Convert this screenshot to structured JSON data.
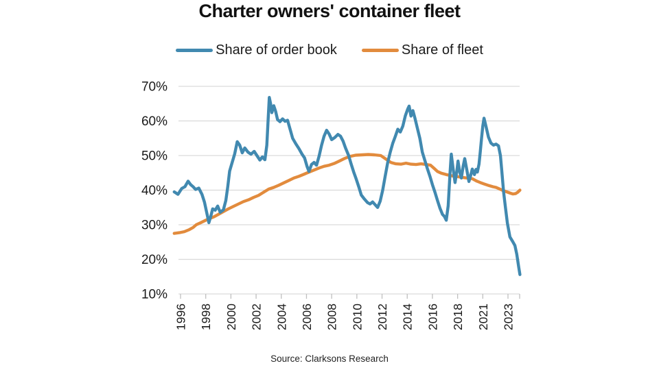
{
  "title": "Charter owners' container fleet",
  "source": "Source: Clarksons Research",
  "colors": {
    "order_book": "#4189b0",
    "fleet": "#e28b3d",
    "gridline": "#d9d9d9",
    "tick": "#bfbfbf",
    "text": "#1a1a1a"
  },
  "chart_data": {
    "type": "line",
    "title": "Charter owners' container fleet",
    "xlabel": "",
    "ylabel": "",
    "unit": "%",
    "grid": true,
    "legend_position": "top",
    "y_axis": {
      "range": [
        10,
        70
      ],
      "tick_values": [
        70,
        60,
        50,
        40,
        30,
        20,
        10
      ],
      "tick_labels": [
        "70%",
        "60%",
        "50%",
        "40%",
        "30%",
        "20%",
        "10%"
      ]
    },
    "x_axis": {
      "tick_years": [
        1996,
        1998,
        2000,
        2002,
        2004,
        2006,
        2008,
        2010,
        2012,
        2014,
        2016,
        2018,
        2021,
        2023
      ],
      "tick_labels": [
        "1996",
        "1998",
        "2000",
        "2002",
        "2004",
        "2006",
        "2008",
        "2010",
        "2012",
        "2014",
        "2016",
        "2018",
        "2021",
        "2023"
      ]
    },
    "series": [
      {
        "id": "fleet",
        "name": "Share of fleet",
        "color": "#e28b3d",
        "points": [
          [
            1995.5,
            27.5
          ],
          [
            1995.9,
            27.7
          ],
          [
            1996.3,
            28.0
          ],
          [
            1996.7,
            28.6
          ],
          [
            1997.0,
            29.2
          ],
          [
            1997.25,
            30.0
          ],
          [
            1997.6,
            30.6
          ],
          [
            1997.95,
            31.2
          ],
          [
            1998.3,
            31.8
          ],
          [
            1998.65,
            32.3
          ],
          [
            1999.0,
            33.0
          ],
          [
            1999.4,
            33.8
          ],
          [
            1999.8,
            34.6
          ],
          [
            2000.2,
            35.3
          ],
          [
            2000.6,
            36.0
          ],
          [
            2001.0,
            36.7
          ],
          [
            2001.4,
            37.2
          ],
          [
            2001.8,
            37.9
          ],
          [
            2002.2,
            38.5
          ],
          [
            2002.6,
            39.4
          ],
          [
            2003.0,
            40.3
          ],
          [
            2003.4,
            40.8
          ],
          [
            2003.8,
            41.4
          ],
          [
            2004.2,
            42.1
          ],
          [
            2004.6,
            42.8
          ],
          [
            2005.0,
            43.5
          ],
          [
            2005.4,
            44.0
          ],
          [
            2005.8,
            44.6
          ],
          [
            2006.2,
            45.2
          ],
          [
            2006.6,
            45.8
          ],
          [
            2007.0,
            46.4
          ],
          [
            2007.4,
            46.9
          ],
          [
            2007.8,
            47.2
          ],
          [
            2008.2,
            47.7
          ],
          [
            2008.6,
            48.4
          ],
          [
            2009.0,
            49.1
          ],
          [
            2009.4,
            49.7
          ],
          [
            2009.9,
            50.1
          ],
          [
            2010.4,
            50.2
          ],
          [
            2010.9,
            50.3
          ],
          [
            2011.4,
            50.2
          ],
          [
            2011.9,
            50.0
          ],
          [
            2012.3,
            49.0
          ],
          [
            2012.7,
            48.0
          ],
          [
            2013.1,
            47.6
          ],
          [
            2013.5,
            47.5
          ],
          [
            2013.9,
            47.8
          ],
          [
            2014.3,
            47.5
          ],
          [
            2014.7,
            47.4
          ],
          [
            2015.1,
            47.6
          ],
          [
            2015.5,
            47.4
          ],
          [
            2015.85,
            47.2
          ],
          [
            2016.1,
            46.4
          ],
          [
            2016.4,
            45.4
          ],
          [
            2016.7,
            44.9
          ],
          [
            2017.1,
            44.5
          ],
          [
            2017.6,
            44.1
          ],
          [
            2018.0,
            43.9
          ],
          [
            2018.5,
            43.7
          ],
          [
            2019.1,
            43.5
          ],
          [
            2019.75,
            43.3
          ],
          [
            2020.3,
            42.6
          ],
          [
            2020.7,
            42.2
          ],
          [
            2021.1,
            41.8
          ],
          [
            2021.5,
            41.3
          ],
          [
            2021.8,
            41.0
          ],
          [
            2022.05,
            40.8
          ],
          [
            2022.3,
            40.4
          ],
          [
            2022.6,
            39.9
          ],
          [
            2022.9,
            39.5
          ],
          [
            2023.2,
            39.1
          ],
          [
            2023.4,
            38.9
          ],
          [
            2023.6,
            39.0
          ],
          [
            2023.78,
            39.4
          ],
          [
            2023.95,
            40.0
          ]
        ]
      },
      {
        "id": "order_book",
        "name": "Share of order book",
        "color": "#4189b0",
        "points": [
          [
            1995.5,
            39.5
          ],
          [
            1995.8,
            38.8
          ],
          [
            1996.1,
            40.5
          ],
          [
            1996.35,
            41.0
          ],
          [
            1996.6,
            42.6
          ],
          [
            1996.8,
            41.6
          ],
          [
            1997.0,
            41.0
          ],
          [
            1997.2,
            40.2
          ],
          [
            1997.45,
            40.6
          ],
          [
            1997.7,
            38.8
          ],
          [
            1997.9,
            36.5
          ],
          [
            1998.05,
            34.0
          ],
          [
            1998.25,
            30.6
          ],
          [
            1998.4,
            32.4
          ],
          [
            1998.55,
            34.6
          ],
          [
            1998.75,
            34.2
          ],
          [
            1998.95,
            35.4
          ],
          [
            1999.15,
            33.6
          ],
          [
            1999.4,
            34.3
          ],
          [
            1999.6,
            37.0
          ],
          [
            1999.75,
            41.0
          ],
          [
            1999.9,
            45.5
          ],
          [
            2000.1,
            48.0
          ],
          [
            2000.3,
            50.5
          ],
          [
            2000.5,
            54.0
          ],
          [
            2000.7,
            53.0
          ],
          [
            2000.9,
            50.8
          ],
          [
            2001.1,
            52.2
          ],
          [
            2001.35,
            51.0
          ],
          [
            2001.6,
            50.4
          ],
          [
            2001.85,
            51.2
          ],
          [
            2002.1,
            49.8
          ],
          [
            2002.3,
            48.7
          ],
          [
            2002.5,
            49.6
          ],
          [
            2002.7,
            48.8
          ],
          [
            2002.85,
            53.0
          ],
          [
            2002.95,
            60.0
          ],
          [
            2003.05,
            66.8
          ],
          [
            2003.15,
            65.0
          ],
          [
            2003.25,
            62.4
          ],
          [
            2003.4,
            64.4
          ],
          [
            2003.55,
            62.8
          ],
          [
            2003.7,
            60.4
          ],
          [
            2003.9,
            59.8
          ],
          [
            2004.1,
            60.6
          ],
          [
            2004.3,
            59.9
          ],
          [
            2004.5,
            60.2
          ],
          [
            2004.7,
            57.6
          ],
          [
            2004.9,
            55.0
          ],
          [
            2005.15,
            53.4
          ],
          [
            2005.4,
            52.0
          ],
          [
            2005.65,
            50.4
          ],
          [
            2005.85,
            49.3
          ],
          [
            2006.05,
            46.8
          ],
          [
            2006.2,
            45.4
          ],
          [
            2006.4,
            47.4
          ],
          [
            2006.6,
            48.0
          ],
          [
            2006.8,
            47.2
          ],
          [
            2007.0,
            49.8
          ],
          [
            2007.2,
            53.0
          ],
          [
            2007.4,
            55.6
          ],
          [
            2007.6,
            57.3
          ],
          [
            2007.8,
            56.2
          ],
          [
            2008.0,
            54.6
          ],
          [
            2008.25,
            55.2
          ],
          [
            2008.5,
            56.1
          ],
          [
            2008.7,
            55.6
          ],
          [
            2008.9,
            54.2
          ],
          [
            2009.1,
            52.2
          ],
          [
            2009.35,
            50.0
          ],
          [
            2009.55,
            47.5
          ],
          [
            2009.75,
            45.2
          ],
          [
            2009.95,
            43.2
          ],
          [
            2010.15,
            41.0
          ],
          [
            2010.35,
            38.6
          ],
          [
            2010.6,
            37.4
          ],
          [
            2010.85,
            36.4
          ],
          [
            2011.05,
            36.0
          ],
          [
            2011.25,
            36.6
          ],
          [
            2011.45,
            35.8
          ],
          [
            2011.65,
            35.0
          ],
          [
            2011.85,
            36.8
          ],
          [
            2012.05,
            40.0
          ],
          [
            2012.25,
            44.0
          ],
          [
            2012.45,
            48.0
          ],
          [
            2012.65,
            51.0
          ],
          [
            2012.85,
            53.5
          ],
          [
            2013.05,
            55.5
          ],
          [
            2013.25,
            57.6
          ],
          [
            2013.45,
            56.8
          ],
          [
            2013.65,
            58.5
          ],
          [
            2013.85,
            61.5
          ],
          [
            2014.05,
            63.5
          ],
          [
            2014.15,
            64.3
          ],
          [
            2014.3,
            61.4
          ],
          [
            2014.45,
            63.0
          ],
          [
            2014.6,
            61.0
          ],
          [
            2014.8,
            58.0
          ],
          [
            2015.0,
            55.0
          ],
          [
            2015.2,
            51.0
          ],
          [
            2015.4,
            48.6
          ],
          [
            2015.6,
            46.2
          ],
          [
            2015.8,
            44.0
          ],
          [
            2016.0,
            41.6
          ],
          [
            2016.2,
            39.4
          ],
          [
            2016.4,
            37.0
          ],
          [
            2016.6,
            34.8
          ],
          [
            2016.8,
            33.0
          ],
          [
            2016.95,
            32.4
          ],
          [
            2017.1,
            31.3
          ],
          [
            2017.25,
            35.5
          ],
          [
            2017.4,
            45.0
          ],
          [
            2017.5,
            50.4
          ],
          [
            2017.65,
            46.0
          ],
          [
            2017.8,
            42.2
          ],
          [
            2017.95,
            45.8
          ],
          [
            2018.05,
            48.4
          ],
          [
            2018.25,
            45.2
          ],
          [
            2018.45,
            43.5
          ],
          [
            2018.65,
            46.8
          ],
          [
            2018.85,
            49.1
          ],
          [
            2019.1,
            45.8
          ],
          [
            2019.35,
            42.5
          ],
          [
            2019.55,
            44.2
          ],
          [
            2019.75,
            46.1
          ],
          [
            2020.0,
            44.5
          ],
          [
            2020.2,
            46.0
          ],
          [
            2020.35,
            45.2
          ],
          [
            2020.55,
            47.5
          ],
          [
            2020.7,
            51.0
          ],
          [
            2020.85,
            55.0
          ],
          [
            2021.0,
            58.5
          ],
          [
            2021.1,
            60.8
          ],
          [
            2021.25,
            58.5
          ],
          [
            2021.45,
            55.3
          ],
          [
            2021.65,
            53.6
          ],
          [
            2021.85,
            53.0
          ],
          [
            2022.05,
            53.3
          ],
          [
            2022.25,
            52.8
          ],
          [
            2022.4,
            50.0
          ],
          [
            2022.5,
            46.0
          ],
          [
            2022.65,
            39.5
          ],
          [
            2022.8,
            35.0
          ],
          [
            2022.95,
            30.5
          ],
          [
            2023.15,
            26.5
          ],
          [
            2023.35,
            25.3
          ],
          [
            2023.55,
            24.0
          ],
          [
            2023.7,
            21.5
          ],
          [
            2023.85,
            17.8
          ],
          [
            2023.95,
            15.6
          ]
        ]
      }
    ]
  }
}
